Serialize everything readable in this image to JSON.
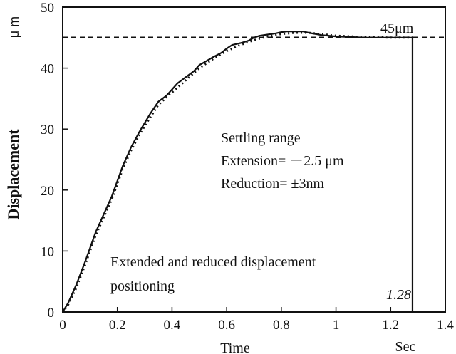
{
  "chart_data": {
    "type": "line",
    "title": "",
    "xlabel": "Time",
    "xunit": "Sec",
    "ylabel": "Displacement",
    "yunit": "μ m",
    "xlim": [
      0,
      1.4
    ],
    "ylim": [
      0,
      50
    ],
    "x_ticks": [
      "0",
      "0.2",
      "0.4",
      "0.6",
      "0.8",
      "1",
      "1.2",
      "1.4"
    ],
    "y_ticks": [
      "0",
      "10",
      "20",
      "30",
      "40",
      "50"
    ],
    "grid": false,
    "series": [
      {
        "style": "solid",
        "x": [
          0,
          0.02,
          0.05,
          0.08,
          0.1,
          0.12,
          0.15,
          0.18,
          0.2,
          0.22,
          0.25,
          0.28,
          0.3,
          0.32,
          0.35,
          0.38,
          0.4,
          0.42,
          0.45,
          0.48,
          0.5,
          0.52,
          0.55,
          0.58,
          0.6,
          0.62,
          0.65,
          0.68,
          0.7,
          0.72,
          0.75,
          0.78,
          0.8,
          0.82,
          0.85,
          0.88,
          0.9,
          0.95,
          1.0,
          1.05,
          1.1,
          1.15,
          1.2,
          1.25,
          1.28
        ],
        "y": [
          0,
          1.5,
          4.5,
          8,
          10.5,
          13,
          16,
          19,
          21.5,
          24,
          27,
          29.5,
          31,
          32.5,
          34.5,
          35.5,
          36.5,
          37.5,
          38.5,
          39.5,
          40.5,
          41,
          41.8,
          42.5,
          43.2,
          43.8,
          44.1,
          44.5,
          45,
          45.3,
          45.5,
          45.7,
          45.9,
          46,
          46,
          46,
          45.8,
          45.4,
          45.2,
          45.1,
          45,
          45,
          45,
          45,
          45
        ]
      },
      {
        "style": "dotted",
        "x": [
          0,
          0.02,
          0.05,
          0.08,
          0.1,
          0.12,
          0.15,
          0.18,
          0.2,
          0.22,
          0.25,
          0.28,
          0.3,
          0.35,
          0.4,
          0.45,
          0.5,
          0.55,
          0.6,
          0.65,
          0.7,
          0.75,
          0.8,
          0.85,
          0.9,
          1.0,
          1.1,
          1.2,
          1.28
        ],
        "y": [
          0,
          1.2,
          4,
          7.5,
          10,
          12.5,
          15.5,
          18.5,
          21,
          23.5,
          26.5,
          29,
          30.5,
          34,
          36,
          38,
          40,
          41.5,
          42.8,
          43.8,
          44.6,
          45.2,
          45.6,
          45.8,
          45.8,
          45.3,
          45.1,
          45,
          45
        ]
      }
    ],
    "reference_line": {
      "y": 45,
      "label": "45μm",
      "style": "dashed"
    },
    "vertical_line": {
      "x": 1.28,
      "label": "1.28"
    },
    "annotations": {
      "settling": [
        "Settling range",
        "Extension= －2.5 μm",
        "Reduction= ±3nm"
      ],
      "positioning": [
        "Extended and reduced displacement",
        "positioning"
      ]
    }
  }
}
